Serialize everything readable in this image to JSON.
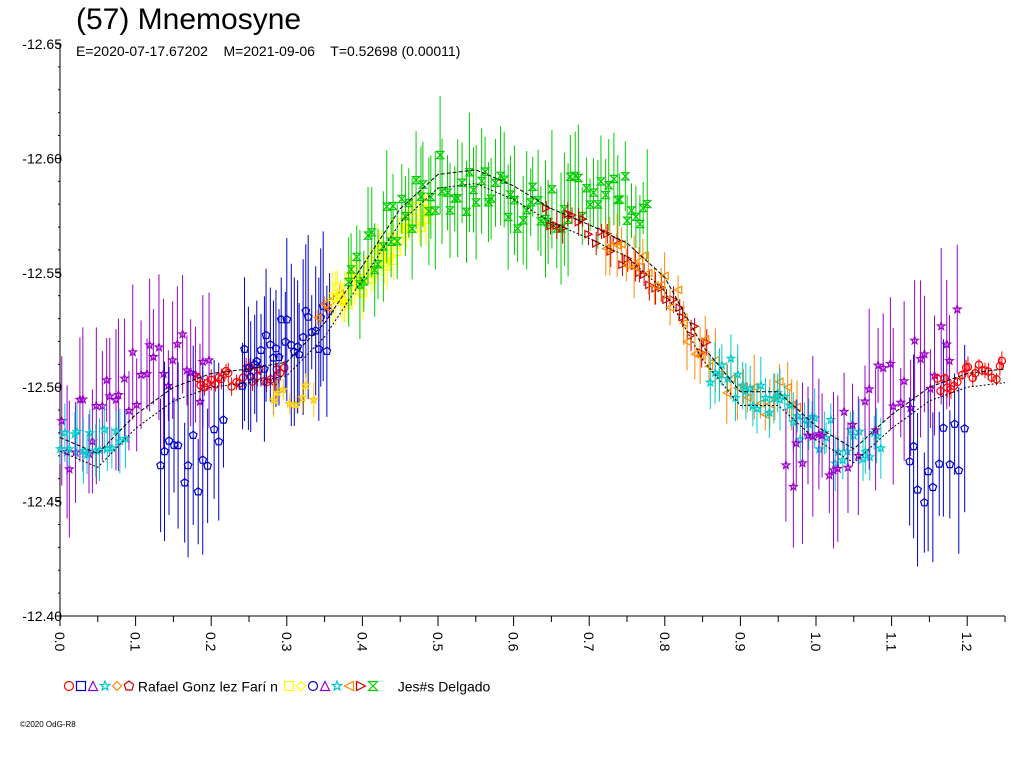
{
  "page": {
    "title": "(57) Mnemosyne",
    "subtitle": "E=2020-07-17.67202    M=2021-09-06    T=0.52698 (0.00011)",
    "copyright": "©2020 OdG-R8"
  },
  "legend": [
    {
      "label": "Rafael Gonz lez Farí n",
      "markers": [
        "circle",
        "square",
        "triangle-up",
        "star",
        "diamond",
        "pentagon"
      ],
      "colors": [
        "#ff0000",
        "#0000cc",
        "#9900cc",
        "#00cccc",
        "#ff8800",
        "#cc0000"
      ]
    },
    {
      "label": "Jes#s Delgado",
      "markers": [
        "square",
        "diamond",
        "circle",
        "triangle-up",
        "star",
        "triangle-left",
        "triangle-right",
        "hourglass"
      ],
      "colors": [
        "#ffff00",
        "#ffff00",
        "#0000cc",
        "#9900cc",
        "#00cccc",
        "#ff8800",
        "#cc0000",
        "#00cc00"
      ]
    }
  ],
  "chart_data": {
    "type": "scatter",
    "title": "(57) Mnemosyne",
    "xlabel": "",
    "ylabel": "",
    "xlim": [
      0.0,
      1.25
    ],
    "ylim": [
      -12.65,
      -12.4
    ],
    "y_inverted": true,
    "grid": false,
    "x_ticks": [
      "0.0",
      "0.1",
      "0.2",
      "0.3",
      "0.4",
      "0.5",
      "0.6",
      "0.7",
      "0.8",
      "0.9",
      "1.0",
      "1.1",
      "1.2"
    ],
    "y_ticks": [
      "-12.65",
      "-12.60",
      "-12.55",
      "-12.50",
      "-12.45",
      "-12.40"
    ],
    "fit_curve": {
      "x": [
        0.0,
        0.05,
        0.1,
        0.15,
        0.2,
        0.25,
        0.3,
        0.35,
        0.4,
        0.45,
        0.5,
        0.55,
        0.6,
        0.65,
        0.7,
        0.75,
        0.8,
        0.85,
        0.9,
        0.95,
        1.0,
        1.05,
        1.1,
        1.15,
        1.2,
        1.25
      ],
      "y": [
        -12.475,
        -12.468,
        -12.485,
        -12.497,
        -12.503,
        -12.505,
        -12.508,
        -12.525,
        -12.55,
        -12.575,
        -12.59,
        -12.592,
        -12.585,
        -12.575,
        -12.568,
        -12.56,
        -12.545,
        -12.515,
        -12.495,
        -12.495,
        -12.48,
        -12.47,
        -12.485,
        -12.497,
        -12.503,
        -12.505
      ]
    },
    "series": [
      {
        "color": "#9900cc",
        "marker": "star",
        "x_range": [
          0.0,
          0.2
        ],
        "y_curve": [
          [
            0.0,
            -12.477
          ],
          [
            0.05,
            -12.487
          ],
          [
            0.1,
            -12.5
          ],
          [
            0.15,
            -12.51
          ],
          [
            0.2,
            -12.515
          ]
        ],
        "scatter": 0.02,
        "err": 0.03,
        "n": 34
      },
      {
        "color": "#00cccc",
        "marker": "star",
        "x_range": [
          0.0,
          0.09
        ],
        "y_curve": [
          [
            0.0,
            -12.48
          ],
          [
            0.05,
            -12.475
          ],
          [
            0.09,
            -12.478
          ]
        ],
        "scatter": 0.008,
        "err": 0.012,
        "n": 16
      },
      {
        "color": "#0000cc",
        "marker": "pentagon",
        "x_range": [
          0.13,
          0.22
        ],
        "y_curve": [
          [
            0.13,
            -12.46
          ],
          [
            0.17,
            -12.465
          ],
          [
            0.22,
            -12.48
          ]
        ],
        "scatter": 0.015,
        "err": 0.035,
        "n": 14
      },
      {
        "color": "#ff0000",
        "marker": "circle",
        "x_range": [
          0.18,
          0.3
        ],
        "y_curve": [
          [
            0.18,
            -12.5
          ],
          [
            0.24,
            -12.505
          ],
          [
            0.3,
            -12.505
          ]
        ],
        "scatter": 0.004,
        "err": 0.004,
        "n": 26
      },
      {
        "color": "#0000cc",
        "marker": "pentagon",
        "x_range": [
          0.24,
          0.36
        ],
        "y_curve": [
          [
            0.24,
            -12.51
          ],
          [
            0.3,
            -12.52
          ],
          [
            0.36,
            -12.525
          ]
        ],
        "scatter": 0.012,
        "err": 0.03,
        "n": 30
      },
      {
        "color": "#ffcc00",
        "marker": "star",
        "x_range": [
          0.28,
          0.34
        ],
        "y_curve": [
          [
            0.28,
            -12.495
          ],
          [
            0.34,
            -12.498
          ]
        ],
        "scatter": 0.005,
        "err": 0.008,
        "n": 8
      },
      {
        "color": "#ff8800",
        "marker": "triangle-left",
        "x_range": [
          0.34,
          0.38
        ],
        "y_curve": [
          [
            0.34,
            -12.53
          ],
          [
            0.38,
            -12.54
          ]
        ],
        "scatter": 0.004,
        "err": 0.005,
        "n": 6
      },
      {
        "color": "#ffff00",
        "marker": "square",
        "x_range": [
          0.36,
          0.49
        ],
        "y_curve": [
          [
            0.36,
            -12.535
          ],
          [
            0.42,
            -12.555
          ],
          [
            0.49,
            -12.58
          ]
        ],
        "scatter": 0.008,
        "err": 0.01,
        "n": 40
      },
      {
        "color": "#00cc00",
        "marker": "hourglass",
        "x_range": [
          0.38,
          0.78
        ],
        "y_curve": [
          [
            0.38,
            -12.545
          ],
          [
            0.45,
            -12.575
          ],
          [
            0.5,
            -12.59
          ],
          [
            0.55,
            -12.585
          ],
          [
            0.6,
            -12.58
          ],
          [
            0.65,
            -12.575
          ],
          [
            0.7,
            -12.585
          ],
          [
            0.78,
            -12.58
          ]
        ],
        "scatter": 0.012,
        "err": 0.022,
        "n": 80
      },
      {
        "color": "#cc0000",
        "marker": "triangle-right",
        "x_range": [
          0.64,
          0.86
        ],
        "y_curve": [
          [
            0.64,
            -12.575
          ],
          [
            0.72,
            -12.565
          ],
          [
            0.8,
            -12.54
          ],
          [
            0.86,
            -12.515
          ]
        ],
        "scatter": 0.005,
        "err": 0.006,
        "n": 30
      },
      {
        "color": "#ff8800",
        "marker": "triangle-left",
        "x_range": [
          0.72,
          0.98
        ],
        "y_curve": [
          [
            0.72,
            -12.565
          ],
          [
            0.8,
            -12.545
          ],
          [
            0.86,
            -12.51
          ],
          [
            0.92,
            -12.495
          ],
          [
            0.98,
            -12.495
          ]
        ],
        "scatter": 0.008,
        "err": 0.012,
        "n": 36
      },
      {
        "color": "#00cccc",
        "marker": "star",
        "x_range": [
          0.86,
          1.09
        ],
        "y_curve": [
          [
            0.86,
            -12.505
          ],
          [
            0.92,
            -12.5
          ],
          [
            0.98,
            -12.485
          ],
          [
            1.03,
            -12.475
          ],
          [
            1.09,
            -12.478
          ]
        ],
        "scatter": 0.01,
        "err": 0.012,
        "n": 45
      },
      {
        "color": "#9900cc",
        "marker": "star",
        "x_range": [
          0.96,
          1.19
        ],
        "y_curve": [
          [
            0.96,
            -12.47
          ],
          [
            1.0,
            -12.475
          ],
          [
            1.06,
            -12.487
          ],
          [
            1.12,
            -12.5
          ],
          [
            1.19,
            -12.515
          ]
        ],
        "scatter": 0.02,
        "err": 0.03,
        "n": 34
      },
      {
        "color": "#0000cc",
        "marker": "pentagon",
        "x_range": [
          1.12,
          1.2
        ],
        "y_curve": [
          [
            1.12,
            -12.46
          ],
          [
            1.16,
            -12.465
          ],
          [
            1.2,
            -12.48
          ]
        ],
        "scatter": 0.015,
        "err": 0.035,
        "n": 12
      },
      {
        "color": "#ff0000",
        "marker": "circle",
        "x_range": [
          1.16,
          1.25
        ],
        "y_curve": [
          [
            1.16,
            -12.5
          ],
          [
            1.2,
            -12.505
          ],
          [
            1.25,
            -12.508
          ]
        ],
        "scatter": 0.004,
        "err": 0.004,
        "n": 20
      }
    ]
  }
}
